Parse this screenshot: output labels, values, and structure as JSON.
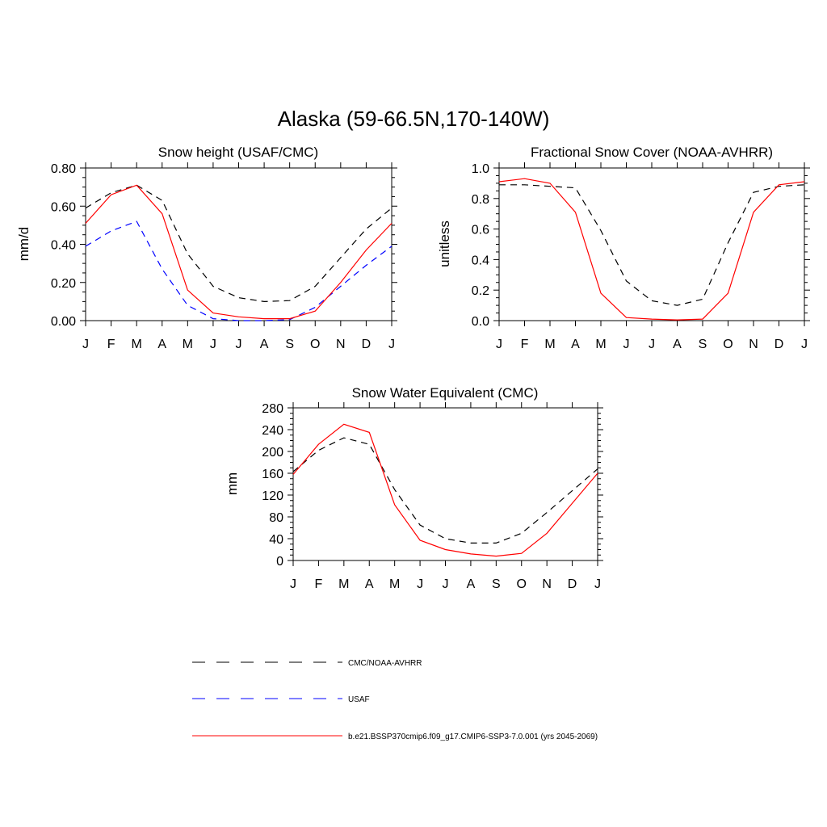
{
  "figure_title": "Alaska (59-66.5N,170-140W)",
  "legend": [
    {
      "label": "CMC/NOAA-AVHRR",
      "color": "#000000",
      "dash": "dashed"
    },
    {
      "label": "USAF",
      "color": "#0000ff",
      "dash": "dashed"
    },
    {
      "label": "b.e21.BSSP370cmip6.f09_g17.CMIP6-SSP3-7.0.001 (yrs 2045-2069)",
      "color": "#ff0000",
      "dash": "solid"
    }
  ],
  "chart_data": [
    {
      "type": "line",
      "title": "Snow height (USAF/CMC)",
      "xlabel": "",
      "ylabel": "mm/d",
      "x": [
        "J",
        "F",
        "M",
        "A",
        "M",
        "J",
        "J",
        "A",
        "S",
        "O",
        "N",
        "D",
        "J"
      ],
      "ylim": [
        0,
        0.8
      ],
      "yticks": [
        "0.00",
        "0.20",
        "0.40",
        "0.60",
        "0.80"
      ],
      "series": [
        {
          "name": "CMC/NOAA-AVHRR",
          "color": "#000000",
          "dash": "dashed",
          "values": [
            0.59,
            0.67,
            0.71,
            0.63,
            0.35,
            0.18,
            0.12,
            0.1,
            0.105,
            0.18,
            0.33,
            0.48,
            0.59
          ]
        },
        {
          "name": "USAF",
          "color": "#0000ff",
          "dash": "dashed",
          "values": [
            0.39,
            0.47,
            0.52,
            0.27,
            0.08,
            0.01,
            0.0,
            0.0,
            0.005,
            0.07,
            0.18,
            0.29,
            0.39
          ]
        },
        {
          "name": "b.e21.BSSP370cmip6.f09_g17.CMIP6-SSP3-7.0.001 (yrs 2045-2069)",
          "color": "#ff0000",
          "dash": "solid",
          "values": [
            0.51,
            0.66,
            0.71,
            0.56,
            0.16,
            0.04,
            0.02,
            0.01,
            0.01,
            0.05,
            0.2,
            0.37,
            0.51
          ]
        }
      ]
    },
    {
      "type": "line",
      "title": "Fractional Snow Cover (NOAA-AVHRR)",
      "xlabel": "",
      "ylabel": "unitless",
      "x": [
        "J",
        "F",
        "M",
        "A",
        "M",
        "J",
        "J",
        "A",
        "S",
        "O",
        "N",
        "D",
        "J"
      ],
      "ylim": [
        0,
        1.0
      ],
      "yticks": [
        "0.0",
        "0.2",
        "0.4",
        "0.6",
        "0.8",
        "1.0"
      ],
      "series": [
        {
          "name": "CMC/NOAA-AVHRR",
          "color": "#000000",
          "dash": "dashed",
          "values": [
            0.89,
            0.89,
            0.88,
            0.87,
            0.59,
            0.26,
            0.13,
            0.1,
            0.14,
            0.51,
            0.84,
            0.88,
            0.89
          ]
        },
        {
          "name": "b.e21.BSSP370cmip6.f09_g17.CMIP6-SSP3-7.0.001 (yrs 2045-2069)",
          "color": "#ff0000",
          "dash": "solid",
          "values": [
            0.91,
            0.93,
            0.9,
            0.71,
            0.18,
            0.02,
            0.01,
            0.005,
            0.01,
            0.18,
            0.71,
            0.89,
            0.91
          ]
        }
      ]
    },
    {
      "type": "line",
      "title": "Snow Water Equivalent (CMC)",
      "xlabel": "",
      "ylabel": "mm",
      "x": [
        "J",
        "F",
        "M",
        "A",
        "M",
        "J",
        "J",
        "A",
        "S",
        "O",
        "N",
        "D",
        "J"
      ],
      "ylim": [
        0,
        280
      ],
      "yticks": [
        "0",
        "40",
        "80",
        "120",
        "160",
        "200",
        "240",
        "280"
      ],
      "series": [
        {
          "name": "CMC/NOAA-AVHRR",
          "color": "#000000",
          "dash": "dashed",
          "values": [
            163,
            202,
            225,
            213,
            130,
            65,
            40,
            32,
            32,
            50,
            88,
            128,
            168
          ]
        },
        {
          "name": "b.e21.BSSP370cmip6.f09_g17.CMIP6-SSP3-7.0.001 (yrs 2045-2069)",
          "color": "#ff0000",
          "dash": "solid",
          "values": [
            158,
            213,
            250,
            235,
            102,
            37,
            20,
            12,
            8,
            13,
            50,
            105,
            160
          ]
        }
      ]
    }
  ]
}
